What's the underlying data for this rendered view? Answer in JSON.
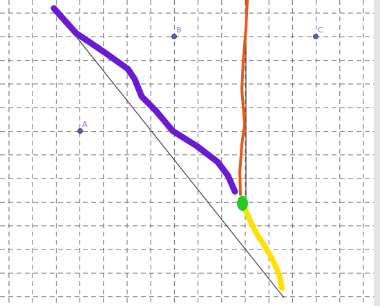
{
  "points": [
    {
      "label": "A"
    },
    {
      "label": "B"
    },
    {
      "label": "C"
    }
  ]
}
